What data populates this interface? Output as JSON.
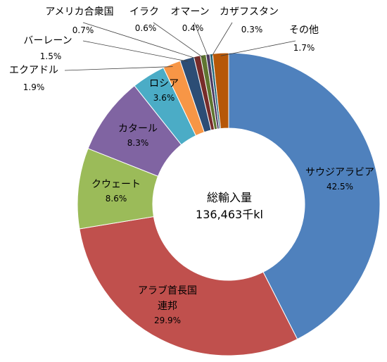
{
  "chart_data": {
    "type": "pie",
    "center_label": [
      "総輸入量",
      "136,463千kl"
    ],
    "slices": [
      {
        "label": "サウジアラビア",
        "value": 42.5,
        "value_label": "42.5%",
        "color": "#4F81BD"
      },
      {
        "label": "アラブ首長国連邦",
        "value": 29.9,
        "value_label": "29.9%",
        "color": "#C0504D"
      },
      {
        "label": "クウェート",
        "value": 8.6,
        "value_label": "8.6%",
        "color": "#9BBB59"
      },
      {
        "label": "カタール",
        "value": 8.3,
        "value_label": "8.3%",
        "color": "#8064A2"
      },
      {
        "label": "ロシア",
        "value": 3.6,
        "value_label": "3.6%",
        "color": "#4BACC6"
      },
      {
        "label": "エクアドル",
        "value": 1.9,
        "value_label": "1.9%",
        "color": "#F79646"
      },
      {
        "label": "バーレーン",
        "value": 1.5,
        "value_label": "1.5%",
        "color": "#2C4D75"
      },
      {
        "label": "アメリカ合衆国",
        "value": 0.7,
        "value_label": "0.7%",
        "color": "#772C2A"
      },
      {
        "label": "イラク",
        "value": 0.6,
        "value_label": "0.6%",
        "color": "#5F7530"
      },
      {
        "label": "オマーン",
        "value": 0.4,
        "value_label": "0.4%",
        "color": "#4D3B62"
      },
      {
        "label": "カザフスタン",
        "value": 0.3,
        "value_label": "0.3%",
        "color": "#276A7C"
      },
      {
        "label": "その他",
        "value": 1.7,
        "value_label": "1.7%",
        "color": "#B65708"
      }
    ]
  }
}
